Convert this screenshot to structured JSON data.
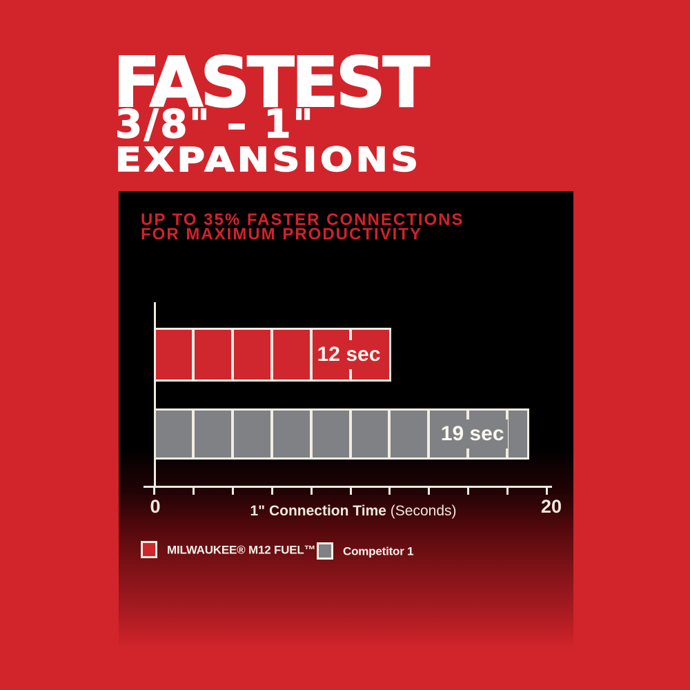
{
  "colors": {
    "background_red": "#d2242b",
    "panel_black": "#000000",
    "milwaukee_bar_red": "#d0262d",
    "competitor_bar_gray": "#7f8184",
    "axis_cream": "#f1ebdf",
    "headline_red": "#d5212b",
    "title_white": "#ffffff"
  },
  "title": {
    "line1": "FASTEST",
    "line2": "3/8\" – 1\"",
    "line3": "EXPANSIONS"
  },
  "panel": {
    "headline_line1": "UP TO 35% FASTER CONNECTIONS",
    "headline_line2": "FOR MAXIMUM PRODUCTIVITY"
  },
  "chart_data": {
    "type": "bar",
    "orientation": "horizontal",
    "title": "UP TO 35% FASTER CONNECTIONS FOR MAXIMUM PRODUCTIVITY",
    "series": [
      {
        "name": "MILWAUKEE® M12 FUEL™",
        "value": 12,
        "label": "12 sec",
        "color": "#d0262d"
      },
      {
        "name": "Competitor 1",
        "value": 19,
        "label": "19 sec",
        "color": "#7f8184"
      }
    ],
    "xlabel": "1\" Connection Time (Seconds)",
    "xlim": [
      0,
      20
    ],
    "tick_step": 2,
    "segment_grid_step": 2,
    "shown_tick_labels": [
      "0",
      "20"
    ],
    "grid": "segment dividers inside bars every 2 seconds",
    "legend_position": "bottom"
  },
  "axis": {
    "min_label": "0",
    "max_label": "20",
    "xlabel_bold": "1\" Connection Time",
    "xlabel_regular": "(Seconds)"
  },
  "legend": [
    {
      "label": "MILWAUKEE® M12 FUEL™",
      "color": "#d0262d"
    },
    {
      "label": "Competitor 1",
      "color": "#7f8184"
    }
  ]
}
